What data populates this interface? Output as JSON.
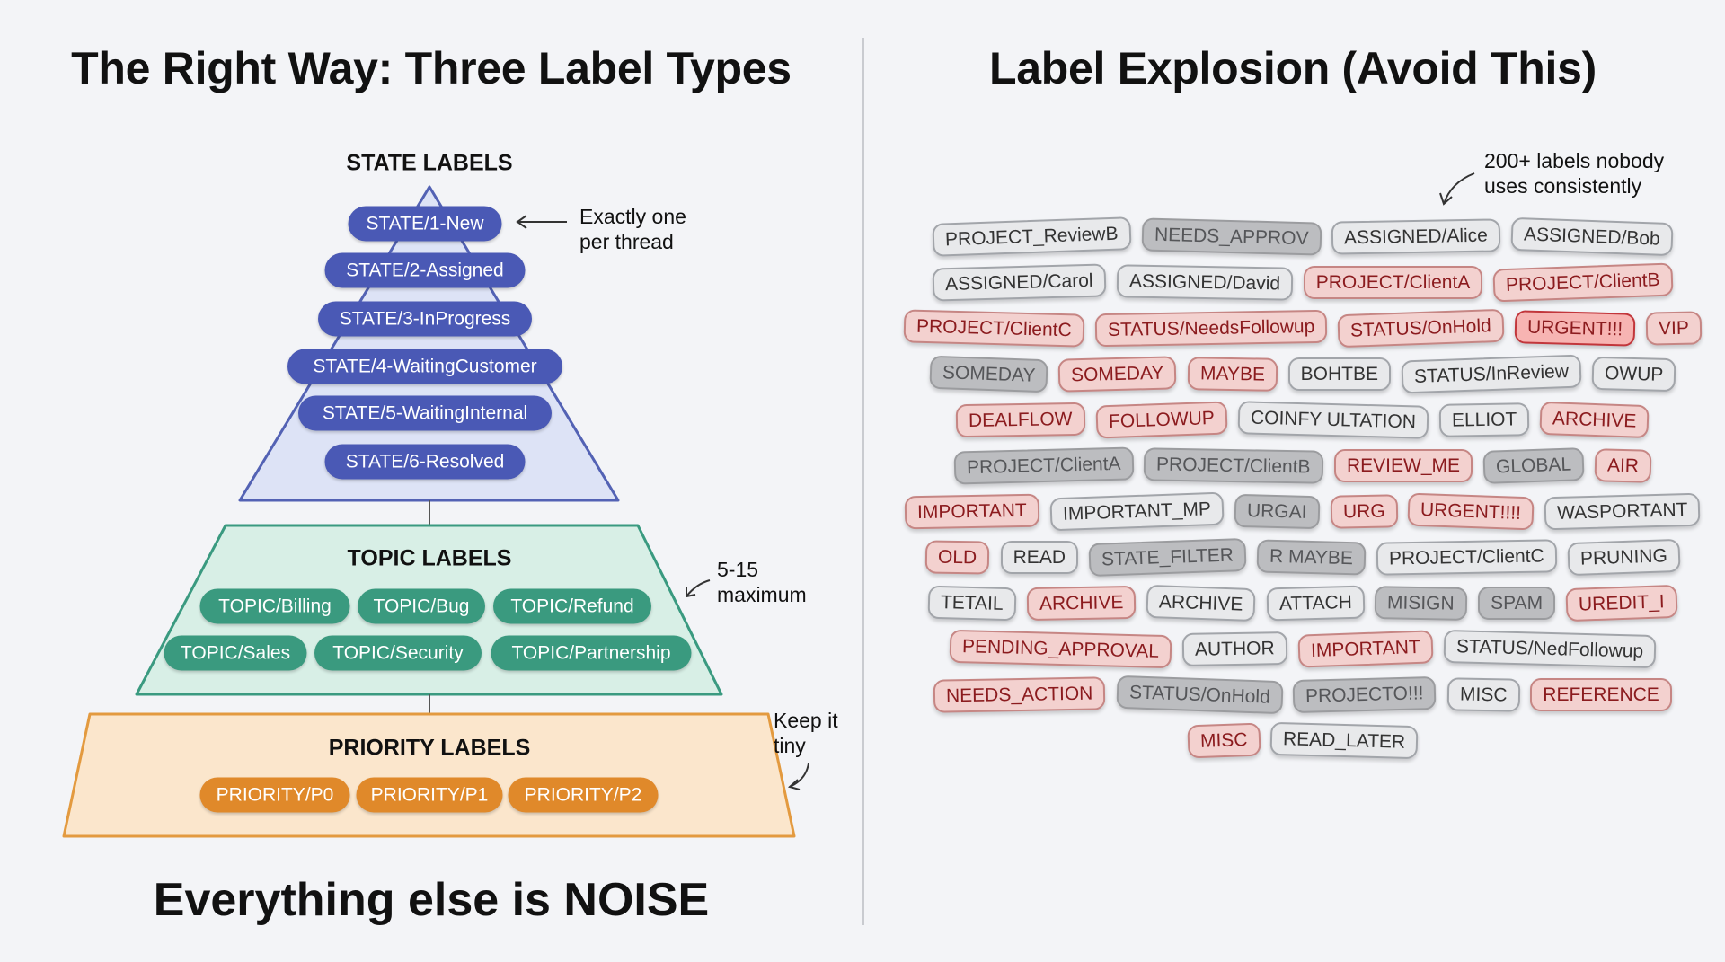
{
  "left": {
    "title": "The Right Way: Three Label Types",
    "state": {
      "heading": "STATE LABELS",
      "labels": [
        "STATE/1-New",
        "STATE/2-Assigned",
        "STATE/3-InProgress",
        "STATE/4-WaitingCustomer",
        "STATE/5-WaitingInternal",
        "STATE/6-Resolved"
      ],
      "note": [
        "Exactly one",
        "per thread"
      ],
      "color": "#4a59b5"
    },
    "topic": {
      "heading": "TOPIC LABELS",
      "labels": [
        "TOPIC/Billing",
        "TOPIC/Bug",
        "TOPIC/Refund",
        "TOPIC/Sales",
        "TOPIC/Security",
        "TOPIC/Partnership"
      ],
      "note": [
        "5-15",
        "maximum"
      ],
      "color": "#3a9a7f"
    },
    "priority": {
      "heading": "PRIORITY LABELS",
      "labels": [
        "PRIORITY/P0",
        "PRIORITY/P1",
        "PRIORITY/P2"
      ],
      "note": [
        "Keep it",
        "tiny"
      ],
      "color": "#e0892a"
    },
    "footer": "Everything else is NOISE"
  },
  "right": {
    "title": "Label Explosion (Avoid This)",
    "note": [
      "200+ labels nobody",
      "uses consistently"
    ],
    "chips": [
      {
        "text": "PROJECT_ReviewB",
        "style": "l"
      },
      {
        "text": "NEEDS_APPROV",
        "style": "g"
      },
      {
        "text": "ASSIGNED/Alice",
        "style": "l"
      },
      {
        "text": "ASSIGNED/Bob",
        "style": "l"
      },
      {
        "text": "ASSIGNED/Carol",
        "style": "l"
      },
      {
        "text": "ASSIGNED/David",
        "style": "l"
      },
      {
        "text": "PROJECT/ClientA",
        "style": "r"
      },
      {
        "text": "PROJECT/ClientB",
        "style": "r"
      },
      {
        "text": "PROJECT/ClientC",
        "style": "r"
      },
      {
        "text": "STATUS/NeedsFollowup",
        "style": "r"
      },
      {
        "text": "STATUS/OnHold",
        "style": "r"
      },
      {
        "text": "URGENT!!!",
        "style": "u"
      },
      {
        "text": "VIP",
        "style": "r"
      },
      {
        "text": "SOMEDAY",
        "style": "g"
      },
      {
        "text": "SOMEDAY",
        "style": "r"
      },
      {
        "text": "MAYBE",
        "style": "r"
      },
      {
        "text": "BOHTBE",
        "style": "l"
      },
      {
        "text": "STATUS/InReview",
        "style": "l"
      },
      {
        "text": "OWUP",
        "style": "l"
      },
      {
        "text": "DEALFLOW",
        "style": "r"
      },
      {
        "text": "FOLLOWUP",
        "style": "r"
      },
      {
        "text": "COINFY ULTATION",
        "style": "l"
      },
      {
        "text": "ELLIOT",
        "style": "l"
      },
      {
        "text": "ARCHIVE",
        "style": "r"
      },
      {
        "text": "PROJECT/ClientA",
        "style": "g"
      },
      {
        "text": "PROJECT/ClientB",
        "style": "g"
      },
      {
        "text": "REVIEW_ME",
        "style": "r"
      },
      {
        "text": "GLOBAL",
        "style": "g"
      },
      {
        "text": "AIR",
        "style": "r"
      },
      {
        "text": "IMPORTANT",
        "style": "r"
      },
      {
        "text": "IMPORTANT_MP",
        "style": "l"
      },
      {
        "text": "URGAI",
        "style": "g"
      },
      {
        "text": "URG",
        "style": "r"
      },
      {
        "text": "URGENT!!!!",
        "style": "r"
      },
      {
        "text": "WASPORTANT",
        "style": "l"
      },
      {
        "text": "OLD",
        "style": "r"
      },
      {
        "text": "READ",
        "style": "l"
      },
      {
        "text": "STATE_FILTER",
        "style": "g"
      },
      {
        "text": "R MAYBE",
        "style": "g"
      },
      {
        "text": "PROJECT/ClientC",
        "style": "l"
      },
      {
        "text": "PRUNING",
        "style": "l"
      },
      {
        "text": "TETAIL",
        "style": "l"
      },
      {
        "text": "ARCHIVE",
        "style": "r"
      },
      {
        "text": "ARCHIVE",
        "style": "l"
      },
      {
        "text": "ATTACH",
        "style": "l"
      },
      {
        "text": "MISIGN",
        "style": "g"
      },
      {
        "text": "SPAM",
        "style": "g"
      },
      {
        "text": "UREDIT_I",
        "style": "r"
      },
      {
        "text": "PENDING_APPROVAL",
        "style": "r"
      },
      {
        "text": "AUTHOR",
        "style": "l"
      },
      {
        "text": "IMPORTANT",
        "style": "r"
      },
      {
        "text": "STATUS/NedFollowup",
        "style": "l"
      },
      {
        "text": "NEEDS_ACTION",
        "style": "r"
      },
      {
        "text": "STATUS/OnHold",
        "style": "g"
      },
      {
        "text": "PROJECTO!!!",
        "style": "g"
      },
      {
        "text": "MISC",
        "style": "l"
      },
      {
        "text": "REFERENCE",
        "style": "r"
      },
      {
        "text": "MISC",
        "style": "r"
      },
      {
        "text": "READ_LATER",
        "style": "l"
      }
    ]
  }
}
